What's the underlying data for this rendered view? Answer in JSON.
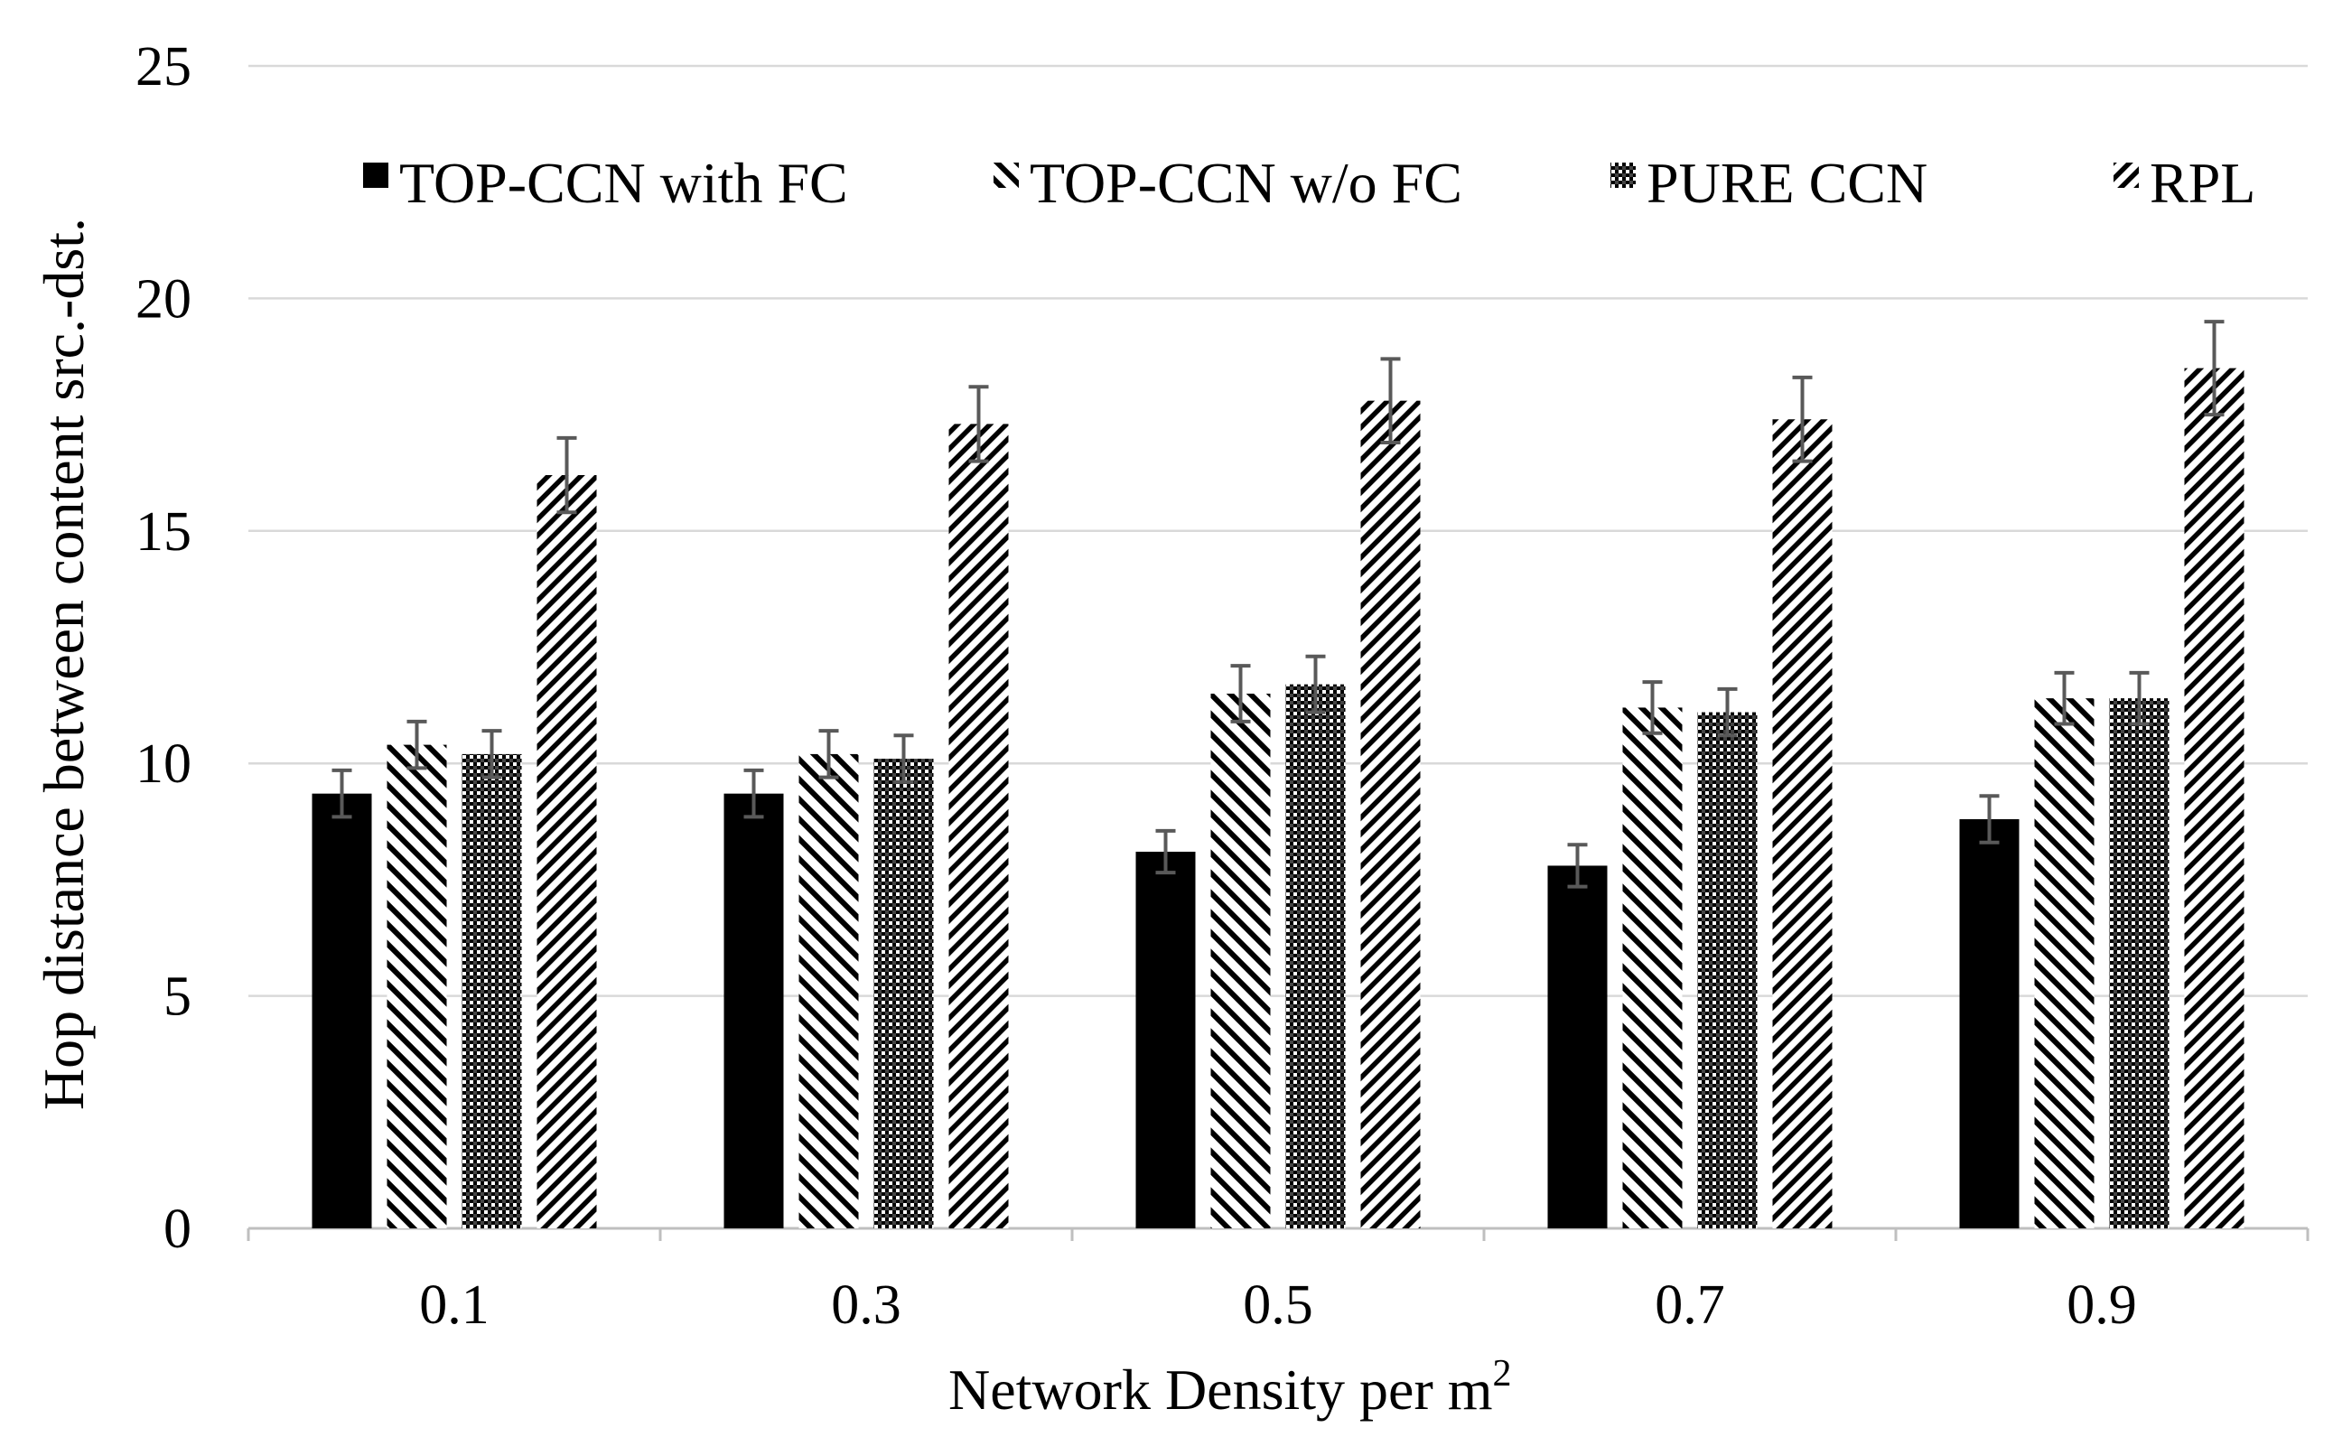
{
  "chart_data": {
    "type": "bar",
    "title": "",
    "xlabel": "Network Density per m",
    "xlabel_superscript": "2",
    "ylabel": "Hop distance between content src.-dst.",
    "ylim": [
      0,
      25
    ],
    "yticks": [
      0,
      5,
      10,
      15,
      20,
      25
    ],
    "grid": true,
    "legend_position": "top",
    "categories": [
      "0.1",
      "0.3",
      "0.5",
      "0.7",
      "0.9"
    ],
    "series": [
      {
        "name": "TOP-CCN with FC",
        "pattern": "solid",
        "values": [
          9.35,
          9.35,
          8.1,
          7.8,
          8.8
        ],
        "errors": [
          0.5,
          0.5,
          0.45,
          0.45,
          0.5
        ]
      },
      {
        "name": "TOP-CCN w/o FC",
        "pattern": "backslash-hatch",
        "values": [
          10.4,
          10.2,
          11.5,
          11.2,
          11.4
        ],
        "errors": [
          0.5,
          0.5,
          0.6,
          0.55,
          0.55
        ]
      },
      {
        "name": "PURE CCN",
        "pattern": "dots",
        "values": [
          10.2,
          10.1,
          11.7,
          11.1,
          11.4
        ],
        "errors": [
          0.5,
          0.5,
          0.6,
          0.5,
          0.55
        ]
      },
      {
        "name": "RPL",
        "pattern": "slash-hatch",
        "values": [
          16.2,
          17.3,
          17.8,
          17.4,
          18.5
        ],
        "errors": [
          0.8,
          0.8,
          0.9,
          0.9,
          1.0
        ]
      }
    ],
    "colors": {
      "bar": "#000000",
      "grid": "#d9d9d9",
      "axis": "#bfbfbf",
      "error": "#595959"
    }
  }
}
